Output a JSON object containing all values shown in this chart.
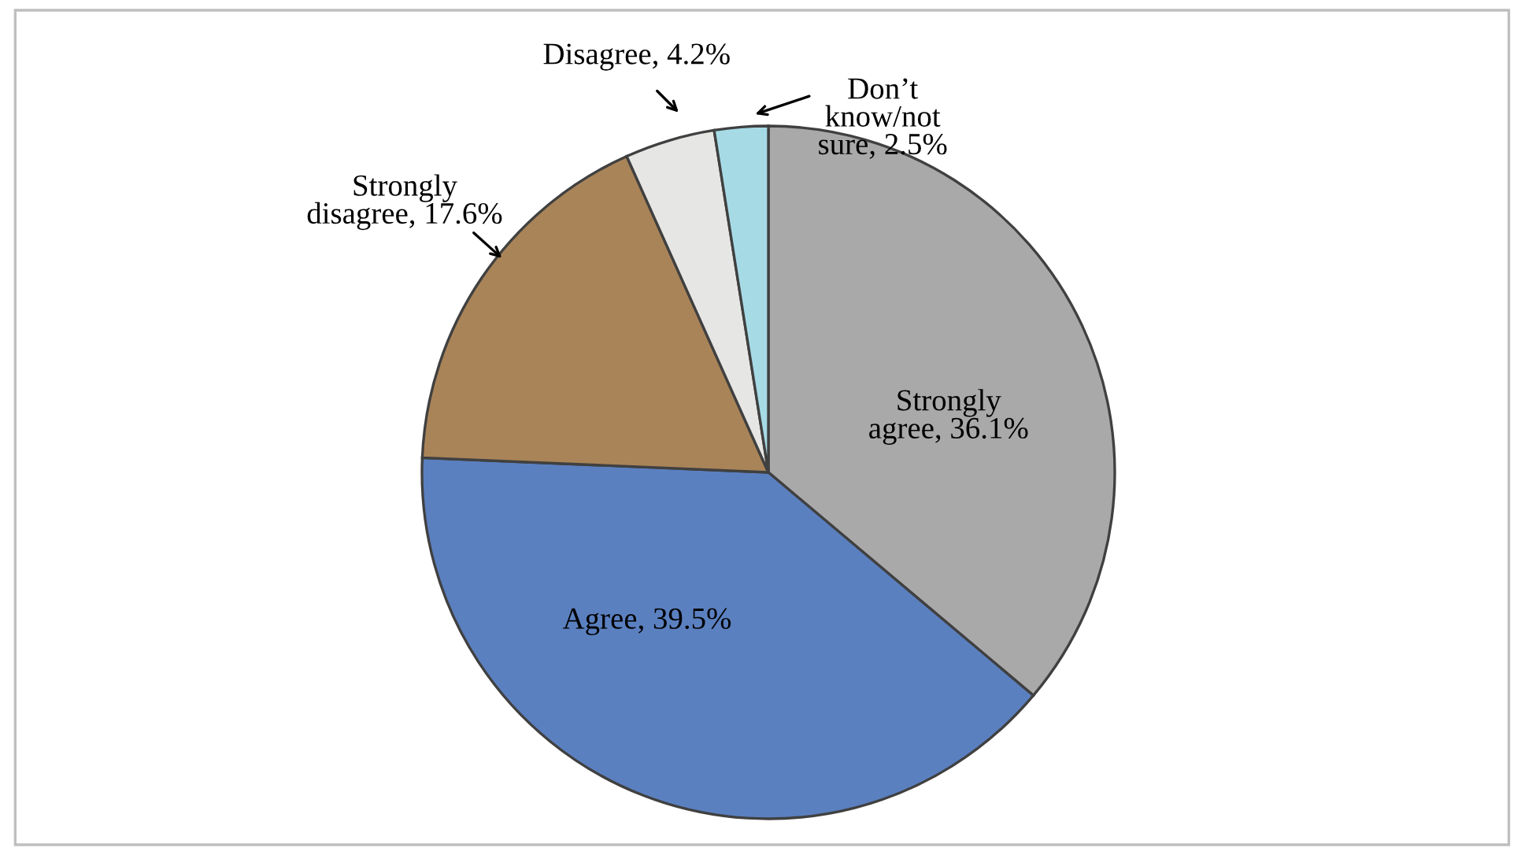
{
  "chart_data": {
    "type": "pie",
    "categories": [
      "Strongly agree",
      "Agree",
      "Strongly disagree",
      "Disagree",
      "Don’t know/not sure"
    ],
    "values": [
      36.1,
      39.5,
      17.6,
      4.2,
      2.5
    ],
    "value_labels": [
      "36.1%",
      "39.5%",
      "17.6%",
      "4.2%",
      "2.5%"
    ],
    "colors": [
      "#a9a9a9",
      "#5b80c0",
      "#a98458",
      "#e6e6e4",
      "#a6dbe6"
    ],
    "legend": false
  }
}
